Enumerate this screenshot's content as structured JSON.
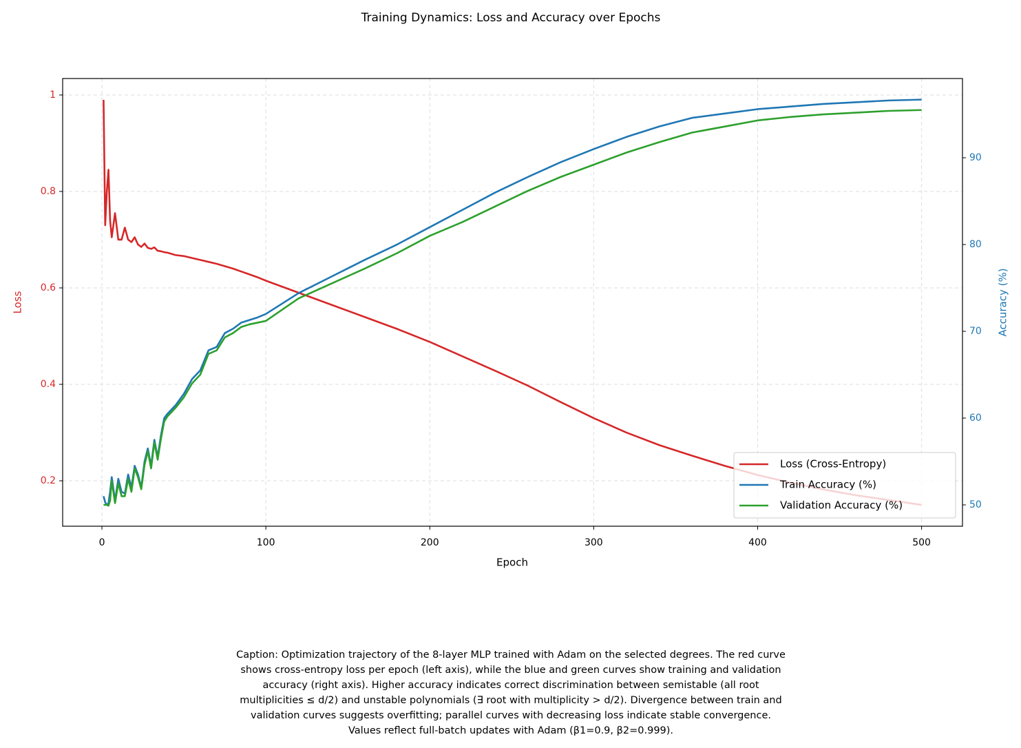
{
  "chart_data": {
    "type": "line",
    "title": "Training Dynamics: Loss and Accuracy over Epochs",
    "xlabel": "Epoch",
    "ylabel": "Loss",
    "y2label": "Accuracy (%)",
    "x": [
      1,
      2,
      3,
      4,
      5,
      6,
      8,
      10,
      12,
      14,
      16,
      18,
      20,
      22,
      24,
      26,
      28,
      30,
      32,
      34,
      36,
      38,
      40,
      45,
      50,
      55,
      60,
      65,
      70,
      75,
      80,
      85,
      90,
      95,
      100,
      120,
      140,
      160,
      180,
      200,
      220,
      240,
      260,
      280,
      300,
      320,
      340,
      360,
      380,
      400,
      420,
      440,
      460,
      480,
      500
    ],
    "series": [
      {
        "name": "Loss (Cross-Entropy)",
        "color": "#d62728",
        "axis": "y",
        "values": [
          0.99,
          0.73,
          0.8,
          0.845,
          0.74,
          0.705,
          0.755,
          0.7,
          0.7,
          0.725,
          0.7,
          0.695,
          0.705,
          0.69,
          0.685,
          0.692,
          0.683,
          0.681,
          0.684,
          0.677,
          0.676,
          0.674,
          0.673,
          0.668,
          0.666,
          0.662,
          0.658,
          0.654,
          0.65,
          0.645,
          0.64,
          0.634,
          0.628,
          0.622,
          0.615,
          0.59,
          0.565,
          0.54,
          0.515,
          0.488,
          0.458,
          0.428,
          0.397,
          0.363,
          0.33,
          0.3,
          0.274,
          0.252,
          0.231,
          0.212,
          0.196,
          0.182,
          0.17,
          0.16,
          0.15
        ]
      },
      {
        "name": "Train Accuracy (%)",
        "color": "#1f77b4",
        "axis": "y2",
        "values": [
          51.0,
          50.3,
          50.0,
          50.2,
          51.5,
          53.2,
          50.5,
          53.0,
          51.5,
          51.3,
          53.5,
          52.0,
          54.5,
          53.5,
          52.0,
          55.0,
          56.5,
          54.5,
          57.5,
          55.5,
          58.0,
          60.0,
          60.5,
          61.5,
          62.8,
          64.5,
          65.5,
          67.8,
          68.2,
          69.8,
          70.3,
          71.0,
          71.3,
          71.6,
          72.0,
          74.4,
          76.3,
          78.2,
          80.0,
          82.0,
          84.0,
          86.0,
          87.8,
          89.5,
          91.0,
          92.4,
          93.6,
          94.6,
          95.1,
          95.6,
          95.9,
          96.2,
          96.4,
          96.6,
          96.7
        ]
      },
      {
        "name": "Validation Accuracy (%)",
        "color": "#2ca02c",
        "axis": "y2",
        "values": [
          50.0,
          50.0,
          50.0,
          49.9,
          50.5,
          52.8,
          50.2,
          52.5,
          51.0,
          51.0,
          53.0,
          51.5,
          54.2,
          53.2,
          51.8,
          54.6,
          56.2,
          54.2,
          57.2,
          55.2,
          57.6,
          59.6,
          60.2,
          61.2,
          62.4,
          64.0,
          65.0,
          67.4,
          67.8,
          69.3,
          69.8,
          70.5,
          70.8,
          71.0,
          71.2,
          73.8,
          75.5,
          77.2,
          79.0,
          81.0,
          82.6,
          84.4,
          86.2,
          87.8,
          89.2,
          90.6,
          91.8,
          92.9,
          93.6,
          94.3,
          94.7,
          95.0,
          95.2,
          95.4,
          95.5
        ]
      }
    ],
    "xlim": [
      -23.95,
      524.95
    ],
    "xticks": [
      0,
      100,
      200,
      300,
      400,
      500
    ],
    "ylim": [
      0.1058,
      1.0342
    ],
    "yticks": [
      0.2,
      0.4,
      0.6,
      0.8,
      1.0
    ],
    "y2lim": [
      47.54,
      99.13
    ],
    "y2ticks": [
      50,
      60,
      70,
      80,
      90
    ],
    "grid": true,
    "legend": "lower right",
    "caption": [
      "Caption: Optimization trajectory of the 8-layer MLP trained with Adam on the selected degrees. The red curve",
      "shows cross-entropy loss per epoch (left axis), while the blue and green curves show training and validation",
      "accuracy (right axis). Higher accuracy indicates correct discrimination between semistable (all root",
      "multiplicities ≤ d/2) and unstable polynomials (∃ root with multiplicity > d/2). Divergence between train and",
      "validation curves suggests overfitting; parallel curves with decreasing loss indicate stable convergence.",
      "Values reflect full-batch updates with Adam (β1=0.9, β2=0.999)."
    ]
  }
}
